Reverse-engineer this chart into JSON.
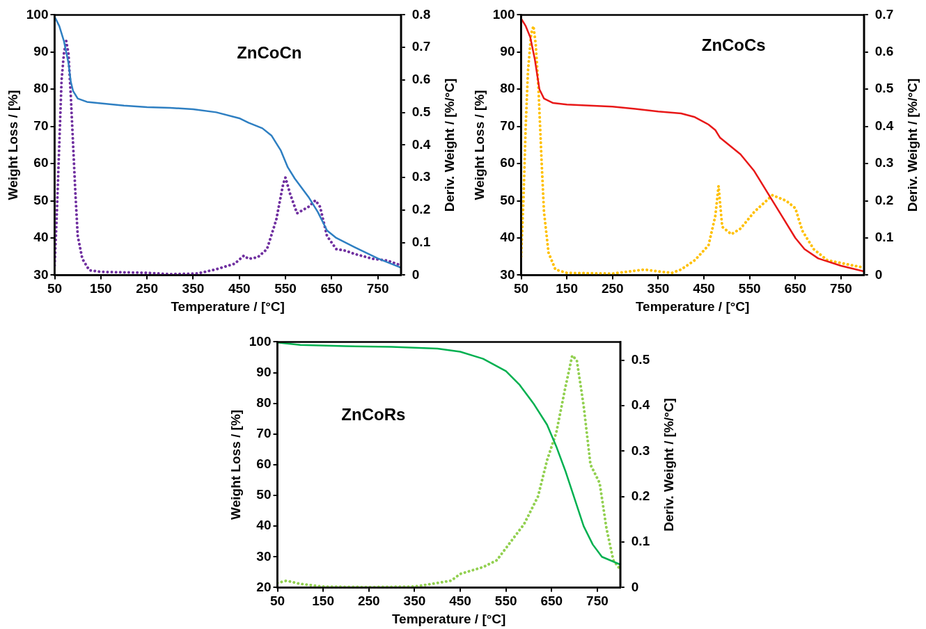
{
  "chart_data": [
    {
      "type": "line",
      "annotations": [
        "ZnCoCn"
      ],
      "xlabel": "Temperature / [°C]",
      "ylabel": "Weight Loss / [%]",
      "y2label": "Deriv. Weight / [%/°C]",
      "xlim": [
        50,
        800
      ],
      "xticks": [
        50,
        150,
        250,
        350,
        450,
        550,
        650,
        750
      ],
      "ylim": [
        30,
        100
      ],
      "yticks": [
        30,
        40,
        50,
        60,
        70,
        80,
        90,
        100
      ],
      "y2lim": [
        0,
        0.8
      ],
      "y2ticks": [
        0,
        0.1,
        0.2,
        0.3,
        0.4,
        0.5,
        0.6,
        0.7,
        0.8
      ],
      "series": [
        {
          "color": "#2e7fc2",
          "x": [
            50,
            60,
            70,
            80,
            85,
            90,
            100,
            120,
            150,
            200,
            250,
            300,
            350,
            400,
            450,
            470,
            500,
            520,
            540,
            555,
            570,
            600,
            620,
            640,
            660,
            700,
            750,
            800
          ],
          "values": [
            99.5,
            97,
            93,
            87,
            82,
            79.5,
            77.5,
            76.6,
            76.2,
            75.6,
            75.2,
            75,
            74.6,
            73.8,
            72.2,
            71,
            69.5,
            67.5,
            63.5,
            59,
            56,
            51,
            47,
            42,
            40,
            37.5,
            34.5,
            32
          ]
        },
        {
          "color": "#7030a0",
          "axis": "y2",
          "line_style": "dotted",
          "x": [
            50,
            55,
            60,
            65,
            70,
            75,
            80,
            85,
            90,
            95,
            100,
            110,
            125,
            150,
            250,
            300,
            360,
            400,
            440,
            460,
            470,
            490,
            510,
            530,
            545,
            550,
            560,
            575,
            600,
            615,
            625,
            640,
            660,
            680,
            700,
            740,
            770,
            800
          ],
          "values": [
            0.03,
            0.2,
            0.4,
            0.6,
            0.68,
            0.72,
            0.68,
            0.55,
            0.4,
            0.25,
            0.12,
            0.05,
            0.015,
            0.01,
            0.007,
            0.003,
            0.005,
            0.018,
            0.035,
            0.06,
            0.05,
            0.055,
            0.08,
            0.17,
            0.28,
            0.3,
            0.25,
            0.19,
            0.21,
            0.23,
            0.21,
            0.12,
            0.08,
            0.075,
            0.065,
            0.05,
            0.045,
            0.03
          ]
        }
      ]
    },
    {
      "type": "line",
      "annotations": [
        "ZnCoCs"
      ],
      "xlabel": "Temperature / [°C]",
      "ylabel": "Weight Loss / [%]",
      "y2label": "Deriv. Weight / [%/°C]",
      "xlim": [
        50,
        800
      ],
      "xticks": [
        50,
        150,
        250,
        350,
        450,
        550,
        650,
        750
      ],
      "ylim": [
        30,
        100
      ],
      "yticks": [
        30,
        40,
        50,
        60,
        70,
        80,
        90,
        100
      ],
      "y2lim": [
        0,
        0.7
      ],
      "y2ticks": [
        0,
        0.1,
        0.2,
        0.3,
        0.4,
        0.5,
        0.6,
        0.7
      ],
      "series": [
        {
          "color": "#e81818",
          "x": [
            50,
            60,
            70,
            80,
            90,
            100,
            120,
            150,
            250,
            300,
            350,
            400,
            430,
            460,
            475,
            480,
            485,
            500,
            530,
            560,
            590,
            620,
            650,
            670,
            700,
            750,
            800
          ],
          "values": [
            99,
            97,
            94,
            88,
            80,
            77.5,
            76.3,
            75.9,
            75.3,
            74.7,
            74,
            73.5,
            72.5,
            70.5,
            69,
            68,
            67,
            65.5,
            62.5,
            58,
            52,
            46,
            40,
            37,
            34.5,
            32.5,
            31
          ]
        },
        {
          "color": "#ffc000",
          "axis": "y2",
          "line_style": "dotted",
          "x": [
            50,
            55,
            60,
            65,
            72,
            77,
            82,
            88,
            95,
            100,
            110,
            125,
            150,
            250,
            300,
            320,
            350,
            380,
            400,
            430,
            460,
            475,
            482,
            490,
            510,
            530,
            560,
            600,
            630,
            650,
            665,
            690,
            720,
            760,
            800
          ],
          "values": [
            0.05,
            0.2,
            0.4,
            0.55,
            0.65,
            0.67,
            0.62,
            0.5,
            0.3,
            0.17,
            0.06,
            0.015,
            0.006,
            0.004,
            0.012,
            0.015,
            0.01,
            0.006,
            0.015,
            0.04,
            0.08,
            0.16,
            0.24,
            0.13,
            0.11,
            0.125,
            0.17,
            0.215,
            0.2,
            0.18,
            0.12,
            0.07,
            0.04,
            0.03,
            0.02
          ]
        }
      ]
    },
    {
      "type": "line",
      "annotations": [
        "ZnCoRs"
      ],
      "xlabel": "Temperature / [°C]",
      "ylabel": "Weight Loss / [%]",
      "y2label": "Deriv. Weight / [%/°C]",
      "xlim": [
        50,
        800
      ],
      "xticks": [
        50,
        150,
        250,
        350,
        450,
        550,
        650,
        750
      ],
      "ylim": [
        20,
        100
      ],
      "yticks": [
        20,
        30,
        40,
        50,
        60,
        70,
        80,
        90,
        100
      ],
      "y2lim": [
        0,
        0.54
      ],
      "y2ticks": [
        0,
        0.1,
        0.2,
        0.3,
        0.4,
        0.5
      ],
      "series": [
        {
          "color": "#00b050",
          "x": [
            50,
            100,
            200,
            300,
            400,
            450,
            500,
            550,
            580,
            610,
            640,
            660,
            680,
            700,
            720,
            740,
            760,
            800
          ],
          "values": [
            99.8,
            99,
            98.6,
            98.4,
            97.8,
            96.8,
            94.5,
            90.5,
            86,
            80,
            73,
            66,
            58,
            49,
            40,
            34,
            30,
            27.5
          ]
        },
        {
          "color": "#92d050",
          "axis": "y2",
          "line_style": "dotted",
          "x": [
            50,
            70,
            100,
            150,
            250,
            350,
            400,
            430,
            450,
            500,
            530,
            560,
            590,
            620,
            640,
            660,
            680,
            695,
            705,
            720,
            735,
            755,
            770,
            785,
            800
          ],
          "values": [
            0.01,
            0.015,
            0.008,
            0.002,
            0.001,
            0.002,
            0.01,
            0.015,
            0.03,
            0.045,
            0.06,
            0.1,
            0.14,
            0.2,
            0.28,
            0.34,
            0.44,
            0.51,
            0.5,
            0.4,
            0.27,
            0.23,
            0.13,
            0.06,
            0.04
          ]
        }
      ]
    }
  ]
}
